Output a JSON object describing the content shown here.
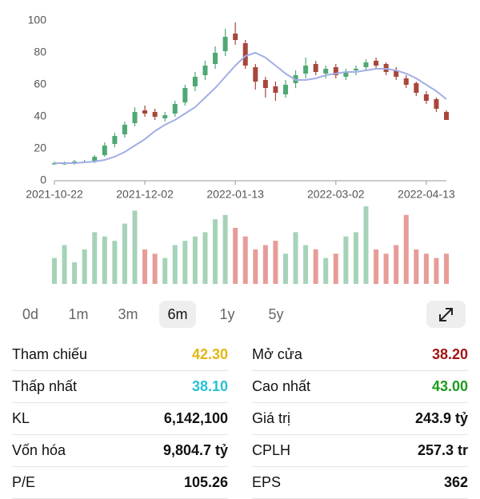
{
  "chart_data": {
    "type": "candlestick",
    "categories": [
      "2021-10-22",
      null,
      null,
      null,
      null,
      null,
      null,
      null,
      null,
      "2021-12-02",
      null,
      null,
      null,
      null,
      null,
      null,
      null,
      null,
      "2022-01-13",
      null,
      null,
      null,
      null,
      null,
      null,
      null,
      null,
      null,
      "2022-03-02",
      null,
      null,
      null,
      null,
      null,
      null,
      null,
      null,
      "2022-04-13",
      null,
      null
    ],
    "open": [
      11,
      11,
      11,
      12,
      12,
      16,
      23,
      29,
      36,
      44,
      43,
      39,
      42,
      49,
      59,
      66,
      73,
      81,
      92,
      86,
      71,
      63,
      59,
      54,
      61,
      67,
      73,
      67,
      71,
      65,
      69,
      71,
      75,
      73,
      69,
      64,
      61,
      54,
      51,
      43
    ],
    "high": [
      12,
      12,
      13,
      13,
      16,
      24,
      30,
      37,
      46,
      47,
      45,
      43,
      50,
      60,
      68,
      75,
      84,
      95,
      99,
      88,
      73,
      65,
      62,
      63,
      69,
      77,
      75,
      72,
      73,
      70,
      72,
      76,
      77,
      74,
      71,
      66,
      62,
      56,
      52,
      44
    ],
    "low": [
      10,
      10,
      10,
      11,
      11,
      15,
      21,
      27,
      34,
      40,
      38,
      37,
      40,
      47,
      56,
      63,
      70,
      78,
      85,
      70,
      57,
      52,
      50,
      52,
      58,
      64,
      66,
      64,
      64,
      63,
      66,
      69,
      70,
      66,
      63,
      58,
      53,
      48,
      43,
      38
    ],
    "close": [
      11,
      11,
      12,
      12,
      15,
      22,
      28,
      35,
      43,
      42,
      40,
      41,
      48,
      58,
      65,
      72,
      80,
      90,
      88,
      72,
      62,
      58,
      55,
      60,
      66,
      72,
      68,
      70,
      66,
      68,
      70,
      74,
      72,
      68,
      65,
      60,
      55,
      50,
      45,
      38
    ],
    "ma": [
      11,
      11,
      11,
      11.5,
      12,
      13,
      15,
      18,
      22,
      26,
      31,
      35,
      38,
      42,
      46,
      52,
      58,
      65,
      72,
      78,
      80,
      77,
      72,
      67,
      63,
      63,
      64,
      66,
      67,
      68,
      68,
      69,
      70,
      70,
      69,
      67,
      64,
      60,
      56,
      51
    ],
    "volume": [
      30,
      45,
      25,
      40,
      60,
      55,
      50,
      70,
      85,
      40,
      35,
      30,
      45,
      50,
      55,
      60,
      75,
      80,
      65,
      55,
      40,
      45,
      50,
      35,
      60,
      45,
      40,
      30,
      35,
      55,
      60,
      90,
      40,
      35,
      45,
      80,
      40,
      35,
      30,
      35
    ],
    "ylim": [
      0,
      100
    ],
    "yticks": [
      0,
      20,
      40,
      60,
      80,
      100
    ],
    "grid": false,
    "up_color": "#4fa874",
    "down_color": "#a8463a",
    "ma_color": "#a3aee6",
    "volume_up_color": "#a6d3b8",
    "volume_down_color": "#e79c98"
  },
  "ranges": [
    "0d",
    "1m",
    "3m",
    "6m",
    "1y",
    "5y"
  ],
  "selected_range": "6m",
  "stats": [
    {
      "label": "Tham chiếu",
      "value": "42.30",
      "color": "#e2b714"
    },
    {
      "label": "Mở cửa",
      "value": "38.20",
      "color": "#a31515"
    },
    {
      "label": "Thấp nhất",
      "value": "38.10",
      "color": "#27c2d3"
    },
    {
      "label": "Cao nhất",
      "value": "43.00",
      "color": "#1c9c1c"
    },
    {
      "label": "KL",
      "value": "6,142,100",
      "color": "#111111"
    },
    {
      "label": "Giá trị",
      "value": "243.9 tỷ",
      "color": "#111111"
    },
    {
      "label": "Vốn hóa",
      "value": "9,804.7 tỷ",
      "color": "#111111"
    },
    {
      "label": "CPLH",
      "value": "257.3 tr",
      "color": "#111111"
    },
    {
      "label": "P/E",
      "value": "105.26",
      "color": "#111111"
    },
    {
      "label": "EPS",
      "value": "362",
      "color": "#111111"
    }
  ]
}
